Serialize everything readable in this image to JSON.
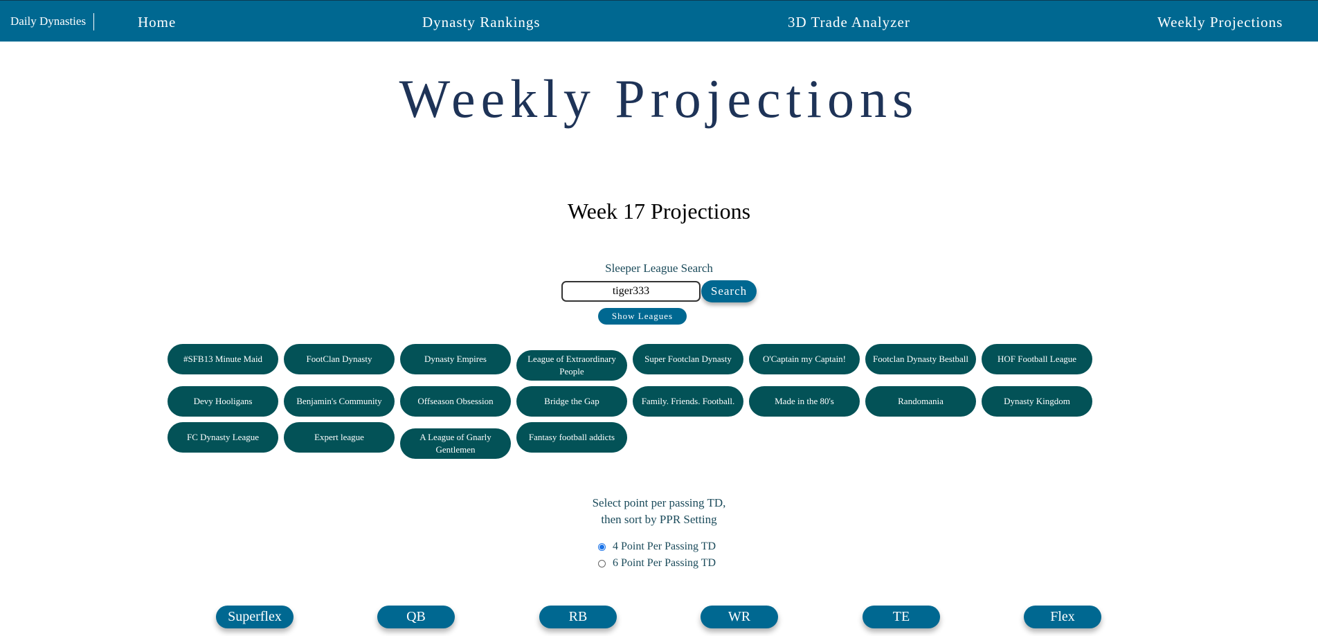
{
  "nav": {
    "brand": "Daily Dynasties",
    "links": [
      "Home",
      "Dynasty Rankings",
      "3D Trade Analyzer",
      "Weekly Projections"
    ]
  },
  "page_title": "Weekly Projections",
  "subtitle": "Week 17 Projections",
  "search": {
    "label": "Sleeper League Search",
    "value": "tiger333",
    "button": "Search",
    "show_leagues": "Show Leagues"
  },
  "leagues": [
    "#SFB13 Minute Maid",
    "FootClan Dynasty",
    "Dynasty Empires",
    "League of Extraordinary People",
    "Super Footclan Dynasty",
    "O'Captain my Captain!",
    "Footclan Dynasty Bestball",
    "HOF Football League",
    "Devy Hooligans",
    "Benjamin's Community",
    "Offseason Obsession",
    "Bridge the Gap",
    "Family. Friends. Football.",
    "Made in the 80's",
    "Randomania",
    "Dynasty Kingdom",
    "FC Dynasty League",
    "Expert league",
    "A League of Gnarly Gentlemen",
    "Fantasy football addicts"
  ],
  "settings": {
    "line1": "Select point per passing TD,",
    "line2": "then sort by PPR Setting",
    "options": [
      "4 Point Per Passing TD",
      "6 Point Per Passing TD"
    ],
    "selected": 0
  },
  "positions": [
    "Superflex",
    "QB",
    "RB",
    "WR",
    "TE",
    "Flex"
  ],
  "colors": {
    "nav_bg": "#006891",
    "league_bg": "#035257",
    "title": "#1e3357"
  }
}
